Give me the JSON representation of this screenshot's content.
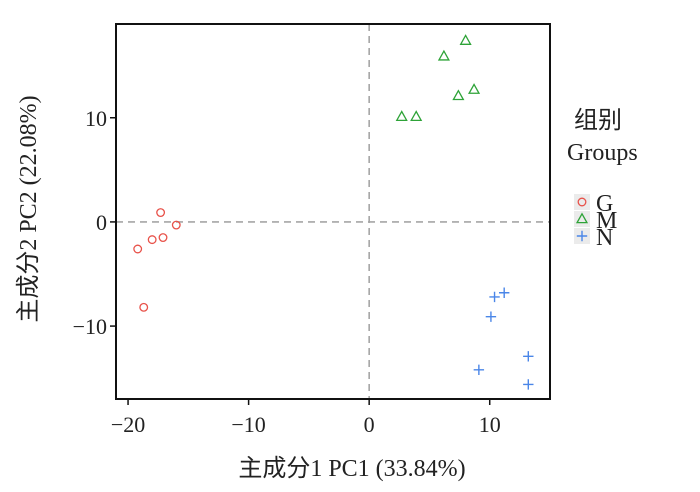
{
  "chart_data": {
    "type": "scatter",
    "title": "",
    "xlabel": "主成分1 PC1 (33.84%)",
    "ylabel": "主成分2 PC2 (22.08%)",
    "xlim": [
      -21,
      15
    ],
    "ylim": [
      -17,
      19
    ],
    "x_ticks": [
      -20,
      -10,
      0,
      10
    ],
    "x_tick_labels": [
      "−20",
      "−10",
      "0",
      "10"
    ],
    "y_ticks": [
      -10,
      0,
      10
    ],
    "y_tick_labels": [
      "−10",
      "0",
      "10"
    ],
    "reference_lines": {
      "x": 0,
      "y": 0,
      "style": "dashed",
      "color": "#a6a6a6"
    },
    "grid": false,
    "legend": {
      "title_line1": "组别",
      "title_line2": "Groups",
      "placement": "right"
    },
    "series": [
      {
        "name": "G",
        "marker": "circle",
        "color": "#e8524a",
        "points": [
          [
            -17.3,
            0.9
          ],
          [
            -16.0,
            -0.3
          ],
          [
            -18.0,
            -1.7
          ],
          [
            -17.1,
            -1.5
          ],
          [
            -19.2,
            -2.6
          ],
          [
            -18.7,
            -8.2
          ]
        ]
      },
      {
        "name": "M",
        "marker": "triangle",
        "color": "#2ea338",
        "points": [
          [
            8.0,
            17.4
          ],
          [
            6.2,
            15.9
          ],
          [
            8.7,
            12.7
          ],
          [
            7.4,
            12.1
          ],
          [
            2.7,
            10.1
          ],
          [
            3.9,
            10.1
          ]
        ]
      },
      {
        "name": "N",
        "marker": "plus",
        "color": "#4a86e8",
        "points": [
          [
            11.2,
            -6.8
          ],
          [
            10.4,
            -7.2
          ],
          [
            10.1,
            -9.1
          ],
          [
            13.2,
            -12.9
          ],
          [
            9.1,
            -14.2
          ],
          [
            13.2,
            -15.6
          ]
        ]
      }
    ]
  }
}
